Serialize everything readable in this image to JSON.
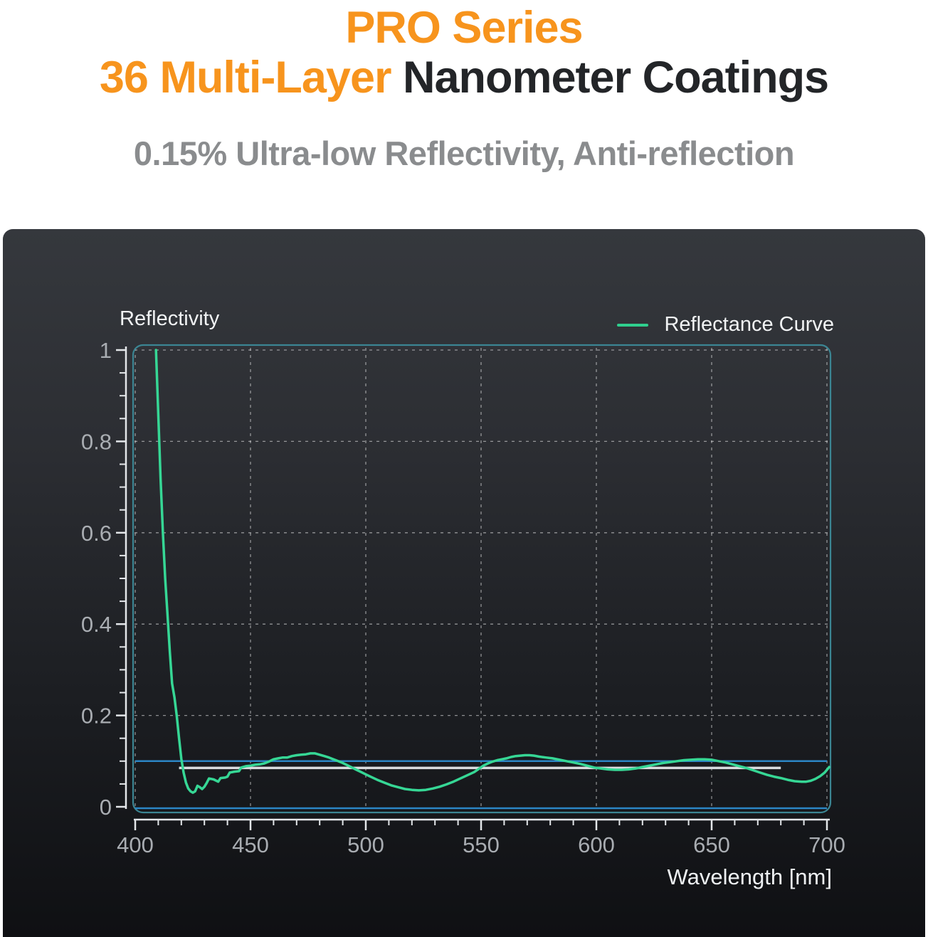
{
  "header": {
    "line1": "PRO Series",
    "line2_accent": "36 Multi-Layer",
    "line2_rest": " Nanometer Coatings",
    "subtitle": "0.15% Ultra-low Reflectivity, Anti-reflection",
    "accent_color": "#F7941D",
    "dark_color": "#232528",
    "subtitle_color": "#8A8C8E"
  },
  "chart_data": {
    "type": "line",
    "y_axis_title": "Reflectivity",
    "xlabel": "Wavelength [nm]",
    "xlim": [
      400,
      700
    ],
    "ylim": [
      0,
      1
    ],
    "x_ticks": [
      400,
      450,
      500,
      550,
      600,
      650,
      700
    ],
    "x_minor_step": 10,
    "y_ticks": [
      0,
      0.2,
      0.4,
      0.6,
      0.8,
      1
    ],
    "y_minor_step": 0.05,
    "grid": "dashed",
    "legend": [
      {
        "label": "Reflectance Curve",
        "color": "#2FCF8E",
        "position": "top-right"
      }
    ],
    "colors": {
      "curve": "#36D795",
      "plot_border": "#3B8593",
      "grid": "rgba(255,255,255,0.5)",
      "axis": "#E3E6E9",
      "tick_label": "#A9ADB2",
      "axis_title": "#EEF1F3",
      "ref_blue": "#2B86C5",
      "ref_white": "#D9DCDF",
      "panel_top": "#35383D",
      "panel_bottom": "#0F1013"
    },
    "reference_lines": [
      {
        "name": "baseline-zero-line",
        "orientation": "h",
        "value": 0.0,
        "x_start": 400,
        "x_end": 700,
        "color": "#2B86C5",
        "width": 2.5
      },
      {
        "name": "target-reflectivity-line",
        "orientation": "h",
        "value": 0.1,
        "x_start": 400,
        "x_end": 700,
        "color": "#2B86C5",
        "width": 2.5
      },
      {
        "name": "average-reflectivity-line",
        "orientation": "h",
        "value": 0.085,
        "x_start": 419,
        "x_end": 680,
        "color": "#D9DCDF",
        "width": 3.5
      }
    ],
    "series": [
      {
        "name": "Reflectance Curve",
        "color": "#36D795",
        "points": [
          [
            409,
            1.0
          ],
          [
            410,
            0.86
          ],
          [
            411,
            0.72
          ],
          [
            412,
            0.6
          ],
          [
            413,
            0.5
          ],
          [
            414,
            0.42
          ],
          [
            415,
            0.34
          ],
          [
            416,
            0.27
          ],
          [
            417,
            0.24
          ],
          [
            418,
            0.2
          ],
          [
            419,
            0.15
          ],
          [
            420,
            0.105
          ],
          [
            421,
            0.075
          ],
          [
            422,
            0.053
          ],
          [
            423,
            0.04
          ],
          [
            424,
            0.034
          ],
          [
            425,
            0.031
          ],
          [
            426,
            0.034
          ],
          [
            427,
            0.046
          ],
          [
            428,
            0.043
          ],
          [
            429,
            0.039
          ],
          [
            430,
            0.044
          ],
          [
            431,
            0.052
          ],
          [
            432,
            0.062
          ],
          [
            434,
            0.06
          ],
          [
            436,
            0.055
          ],
          [
            437,
            0.063
          ],
          [
            439,
            0.064
          ],
          [
            440,
            0.066
          ],
          [
            441,
            0.075
          ],
          [
            443,
            0.077
          ],
          [
            445,
            0.078
          ],
          [
            446,
            0.086
          ],
          [
            448,
            0.089
          ],
          [
            450,
            0.09
          ],
          [
            452,
            0.092
          ],
          [
            454,
            0.093
          ],
          [
            456,
            0.095
          ],
          [
            458,
            0.099
          ],
          [
            460,
            0.104
          ],
          [
            462,
            0.106
          ],
          [
            464,
            0.108
          ],
          [
            466,
            0.108
          ],
          [
            468,
            0.111
          ],
          [
            470,
            0.113
          ],
          [
            472,
            0.114
          ],
          [
            474,
            0.115
          ],
          [
            476,
            0.117
          ],
          [
            478,
            0.117
          ],
          [
            480,
            0.114
          ],
          [
            482,
            0.111
          ],
          [
            484,
            0.108
          ],
          [
            486,
            0.104
          ],
          [
            488,
            0.1
          ],
          [
            490,
            0.096
          ],
          [
            492,
            0.091
          ],
          [
            494,
            0.086
          ],
          [
            496,
            0.081
          ],
          [
            498,
            0.076
          ],
          [
            500,
            0.071
          ],
          [
            502,
            0.066
          ],
          [
            505,
            0.059
          ],
          [
            508,
            0.053
          ],
          [
            511,
            0.047
          ],
          [
            514,
            0.043
          ],
          [
            517,
            0.039
          ],
          [
            520,
            0.037
          ],
          [
            523,
            0.036
          ],
          [
            526,
            0.037
          ],
          [
            529,
            0.04
          ],
          [
            532,
            0.044
          ],
          [
            535,
            0.049
          ],
          [
            538,
            0.055
          ],
          [
            541,
            0.062
          ],
          [
            544,
            0.069
          ],
          [
            547,
            0.076
          ],
          [
            549,
            0.083
          ],
          [
            551,
            0.09
          ],
          [
            553,
            0.095
          ],
          [
            555,
            0.099
          ],
          [
            557,
            0.102
          ],
          [
            559,
            0.104
          ],
          [
            561,
            0.106
          ],
          [
            563,
            0.109
          ],
          [
            565,
            0.111
          ],
          [
            567,
            0.112
          ],
          [
            569,
            0.113
          ],
          [
            571,
            0.113
          ],
          [
            573,
            0.112
          ],
          [
            575,
            0.11
          ],
          [
            578,
            0.108
          ],
          [
            581,
            0.106
          ],
          [
            584,
            0.103
          ],
          [
            587,
            0.1
          ],
          [
            590,
            0.097
          ],
          [
            593,
            0.094
          ],
          [
            596,
            0.09
          ],
          [
            599,
            0.086
          ],
          [
            602,
            0.084
          ],
          [
            605,
            0.082
          ],
          [
            608,
            0.081
          ],
          [
            611,
            0.081
          ],
          [
            614,
            0.082
          ],
          [
            617,
            0.084
          ],
          [
            620,
            0.087
          ],
          [
            623,
            0.09
          ],
          [
            626,
            0.093
          ],
          [
            629,
            0.096
          ],
          [
            632,
            0.098
          ],
          [
            635,
            0.1
          ],
          [
            638,
            0.102
          ],
          [
            641,
            0.103
          ],
          [
            644,
            0.104
          ],
          [
            647,
            0.104
          ],
          [
            650,
            0.103
          ],
          [
            653,
            0.1
          ],
          [
            656,
            0.097
          ],
          [
            659,
            0.093
          ],
          [
            662,
            0.089
          ],
          [
            665,
            0.085
          ],
          [
            668,
            0.08
          ],
          [
            671,
            0.075
          ],
          [
            674,
            0.07
          ],
          [
            677,
            0.066
          ],
          [
            680,
            0.063
          ],
          [
            683,
            0.059
          ],
          [
            686,
            0.056
          ],
          [
            689,
            0.055
          ],
          [
            691,
            0.055
          ],
          [
            693,
            0.057
          ],
          [
            695,
            0.061
          ],
          [
            697,
            0.067
          ],
          [
            699,
            0.075
          ],
          [
            701,
            0.087
          ]
        ]
      }
    ]
  }
}
